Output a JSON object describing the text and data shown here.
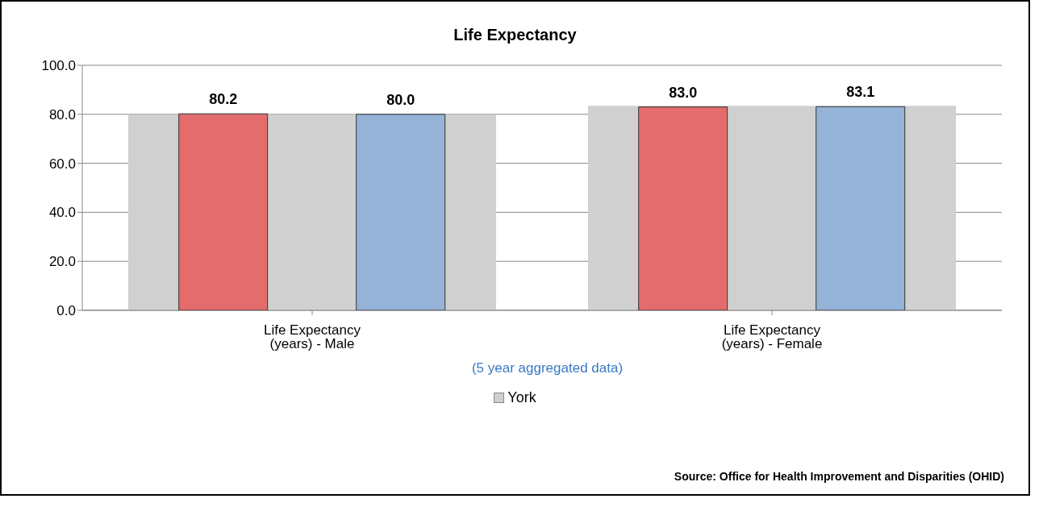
{
  "chart_data": {
    "type": "bar",
    "title": "Life Expectancy",
    "xlabel": "(5 year aggregated data)",
    "categories": [
      "Life Expectancy (years) - Male",
      "Life Expectancy (years) - Female"
    ],
    "series": [
      {
        "name": "York",
        "color": "#d0d0d0",
        "values": [
          80.0,
          83.5
        ]
      },
      {
        "color": "#e46c6c",
        "values": [
          80.2,
          83.0
        ],
        "value_labels": [
          "80.2",
          "83.0"
        ]
      },
      {
        "color": "#95b3d7",
        "values": [
          80.0,
          83.1
        ],
        "value_labels": [
          "80.0",
          "83.1"
        ]
      }
    ],
    "ylim": [
      0,
      100
    ],
    "yticks": [
      {
        "value": 0,
        "label": "0.0"
      },
      {
        "value": 20,
        "label": "20.0"
      },
      {
        "value": 40,
        "label": "40.0"
      },
      {
        "value": 60,
        "label": "60.0"
      },
      {
        "value": 80,
        "label": "80.0"
      },
      {
        "value": 100,
        "label": "100.0"
      }
    ],
    "grid": "y",
    "legend": "bottom",
    "annotations": [
      "Source: Office for Health Improvement and Disparities (OHID)"
    ]
  }
}
